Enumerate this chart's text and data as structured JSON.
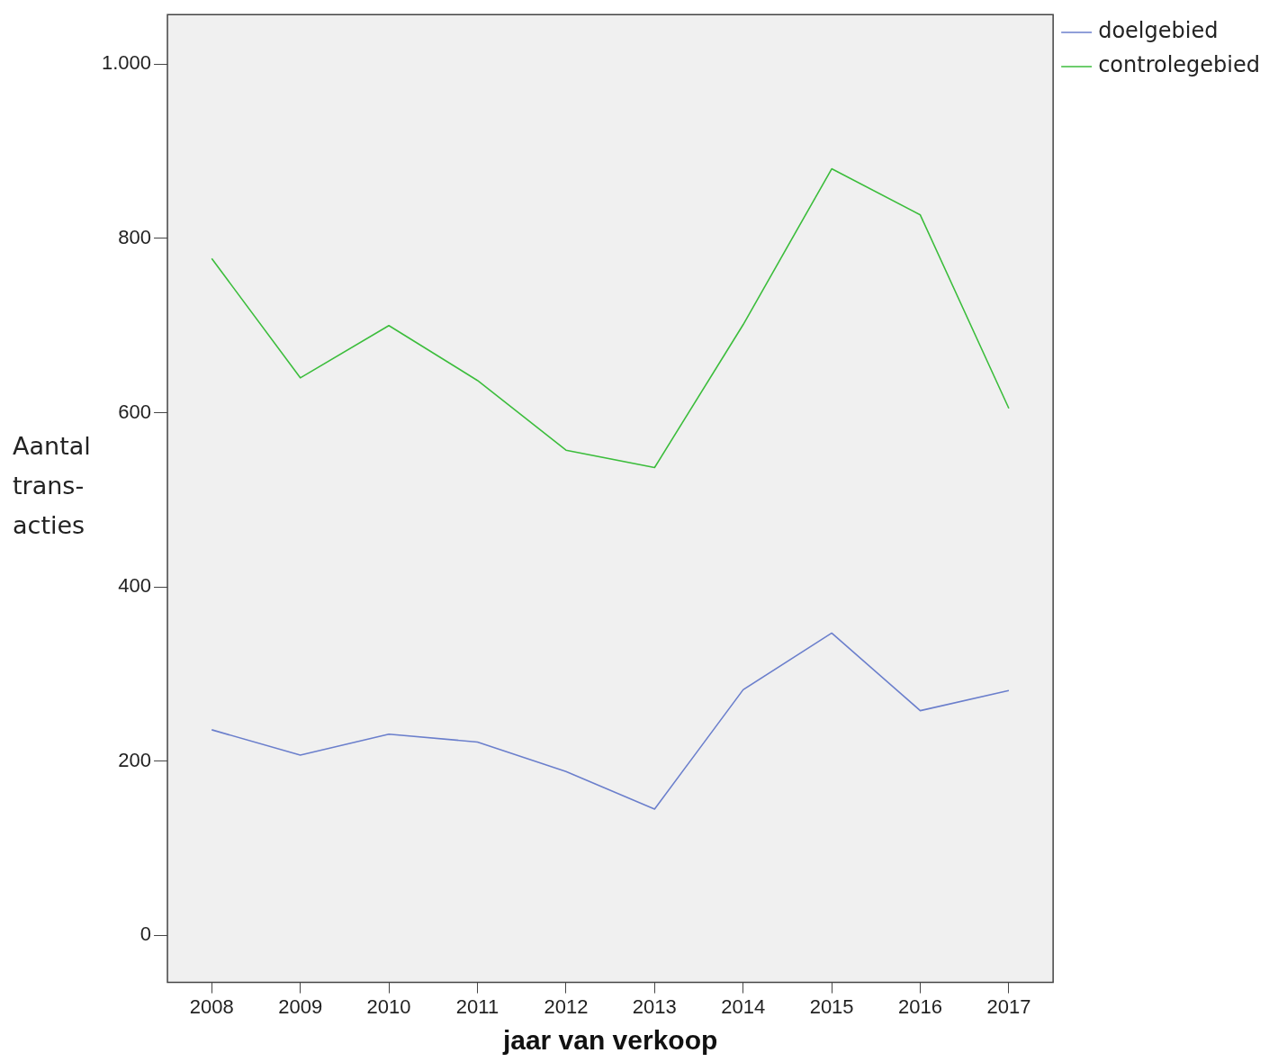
{
  "chart_data": {
    "type": "line",
    "xlabel": "jaar van verkoop",
    "ylabel": "Aantal trans-acties",
    "categories": [
      "2008",
      "2009",
      "2010",
      "2011",
      "2012",
      "2013",
      "2014",
      "2015",
      "2016",
      "2017"
    ],
    "series": [
      {
        "name": "doelgebied",
        "color": "#6b7fcc",
        "values": [
          236,
          207,
          231,
          222,
          188,
          145,
          282,
          347,
          258,
          281
        ]
      },
      {
        "name": "controlegebied",
        "color": "#3cbd3c",
        "values": [
          777,
          640,
          700,
          637,
          557,
          537,
          701,
          880,
          827,
          605
        ]
      }
    ],
    "ylim": [
      -54,
      1057
    ],
    "yticks": [
      0,
      200,
      400,
      600,
      800,
      {
        "value": 1000,
        "label": "1.000"
      }
    ],
    "grid": false,
    "legend": "right",
    "marker": "none",
    "line_style": "solid"
  }
}
